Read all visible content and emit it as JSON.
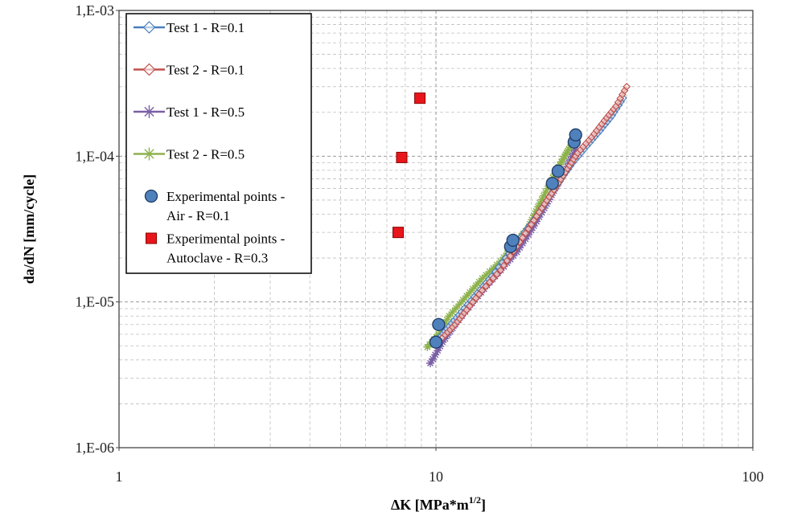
{
  "chart_data": {
    "type": "scatter",
    "xlabel": "ΔK [MPa*m",
    "xlabel_sup": "1/2",
    "xlabel_end": "]",
    "ylabel": "da/dN [mm/cycle]",
    "x_scale": "log",
    "y_scale": "log",
    "xlim": [
      1,
      100
    ],
    "ylim": [
      1e-06,
      0.001
    ],
    "x_ticks": [
      1,
      10,
      100
    ],
    "x_tick_labels": [
      "1",
      "10",
      "100"
    ],
    "y_ticks": [
      1e-06,
      1e-05,
      0.0001,
      0.001
    ],
    "y_tick_labels": [
      "1,E-06",
      "1,E-05",
      "1,E-04",
      "1,E-03"
    ],
    "grid": true,
    "legend_position": "top-left",
    "series": [
      {
        "name": "Test 1 - R=0.1",
        "color": "#4a7ebb",
        "marker": "diamond",
        "style": "line-marker",
        "points": [
          [
            10.2,
            5.6e-06
          ],
          [
            11,
            6.8e-06
          ],
          [
            12,
            8.5e-06
          ],
          [
            13.5,
            1.15e-05
          ],
          [
            15,
            1.5e-05
          ],
          [
            17,
            2.15e-05
          ],
          [
            19,
            3e-05
          ],
          [
            21,
            4e-05
          ],
          [
            23,
            5.4e-05
          ],
          [
            25,
            7.1e-05
          ],
          [
            27,
            9e-05
          ],
          [
            30,
            0.000118
          ],
          [
            33,
            0.00015
          ],
          [
            36,
            0.00019
          ],
          [
            39,
            0.00025
          ]
        ]
      },
      {
        "name": "Test 2 - R=0.1",
        "color": "#c0504d",
        "marker": "diamond",
        "style": "line-marker",
        "points": [
          [
            10.5,
            5.7e-06
          ],
          [
            11.5,
            7e-06
          ],
          [
            12.5,
            8.8e-06
          ],
          [
            14,
            1.2e-05
          ],
          [
            16,
            1.65e-05
          ],
          [
            18,
            2.4e-05
          ],
          [
            20,
            3.4e-05
          ],
          [
            22,
            4.7e-05
          ],
          [
            24,
            6.2e-05
          ],
          [
            26,
            8.2e-05
          ],
          [
            28,
            0.000105
          ],
          [
            31,
            0.000135
          ],
          [
            34,
            0.000175
          ],
          [
            37,
            0.00022
          ],
          [
            40,
            0.0003
          ]
        ]
      },
      {
        "name": "Test 1 - R=0.5",
        "color": "#7a5fa6",
        "marker": "star",
        "style": "line-marker",
        "points": [
          [
            9.6,
            3.8e-06
          ],
          [
            10.5,
            5.3e-06
          ],
          [
            11.5,
            7e-06
          ],
          [
            13,
            9.8e-06
          ],
          [
            14.5,
            1.3e-05
          ],
          [
            16,
            1.65e-05
          ],
          [
            18,
            2.2e-05
          ],
          [
            20,
            3.1e-05
          ],
          [
            22,
            4.4e-05
          ],
          [
            24,
            6.2e-05
          ],
          [
            26,
            8.5e-05
          ],
          [
            27.5,
            0.00011
          ]
        ]
      },
      {
        "name": "Test 2 - R=0.5",
        "color": "#8db24c",
        "marker": "star",
        "style": "line-marker",
        "points": [
          [
            9.4,
            4.9e-06
          ],
          [
            10.2,
            6e-06
          ],
          [
            11,
            8e-06
          ],
          [
            12.5,
            1.1e-05
          ],
          [
            14,
            1.45e-05
          ],
          [
            16,
            1.9e-05
          ],
          [
            18,
            2.6e-05
          ],
          [
            19.5,
            3.2e-05
          ],
          [
            21,
            4.5e-05
          ],
          [
            22.5,
            6e-05
          ],
          [
            24,
            8e-05
          ],
          [
            25.5,
            0.0001
          ],
          [
            26.5,
            0.000115
          ]
        ]
      },
      {
        "name": "Experimental points - Air - R=0.1",
        "legend_lines": [
          "Experimental points -",
          "Air - R=0.1"
        ],
        "color": "#4f81bd",
        "marker": "circle",
        "style": "marker",
        "points": [
          [
            10.0,
            5.3e-06
          ],
          [
            10.2,
            7e-06
          ],
          [
            17.2,
            2.4e-05
          ],
          [
            17.5,
            2.65e-05
          ],
          [
            23.3,
            6.5e-05
          ],
          [
            24.3,
            7.9e-05
          ],
          [
            27.3,
            0.000125
          ],
          [
            27.6,
            0.00014
          ]
        ]
      },
      {
        "name": "Experimental points - Autoclave - R=0.3",
        "legend_lines": [
          "Experimental points -",
          "Autoclave - R=0.3"
        ],
        "color": "#e8161b",
        "marker": "square",
        "style": "marker",
        "points": [
          [
            7.6,
            3e-05
          ],
          [
            7.8,
            9.8e-05
          ],
          [
            8.9,
            0.00025
          ]
        ]
      }
    ]
  }
}
